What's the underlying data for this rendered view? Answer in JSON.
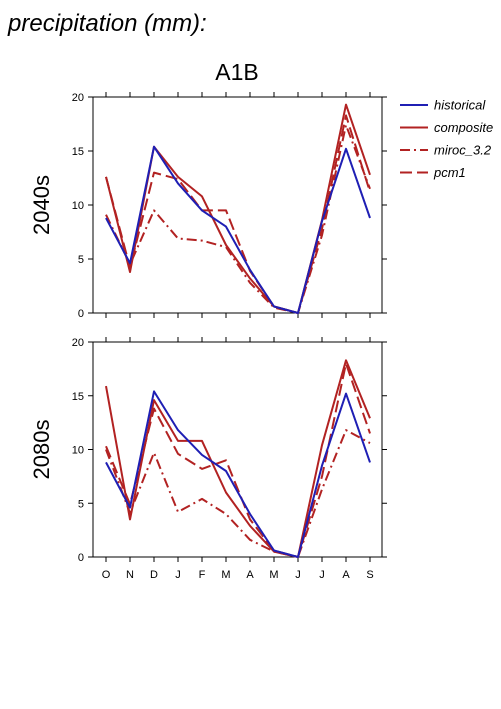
{
  "header": {
    "title": "precipitation (mm):"
  },
  "chart_data": {
    "type": "line",
    "title": "A1B",
    "x_ticks": [
      "O",
      "N",
      "D",
      "J",
      "F",
      "M",
      "A",
      "M",
      "J",
      "J",
      "A",
      "S"
    ],
    "ylim": [
      0,
      20
    ],
    "y_ticks": [
      "0",
      "5",
      "10",
      "15",
      "20"
    ],
    "grid": false,
    "legend_position": "right",
    "legend": [
      {
        "name": "historical",
        "color": "#1f1fb4",
        "style": "solid"
      },
      {
        "name": "composite",
        "color": "#b22222",
        "style": "solid"
      },
      {
        "name": "miroc_3.2",
        "color": "#b22222",
        "style": "dash-dot"
      },
      {
        "name": "pcm1",
        "color": "#b22222",
        "style": "dashed"
      }
    ],
    "panels": [
      {
        "ylabel": "2040s",
        "series": [
          {
            "name": "historical",
            "values": [
              8.8,
              4.6,
              15.4,
              12.0,
              9.5,
              8.0,
              4.0,
              0.6,
              0.0,
              8.5,
              15.2,
              8.8
            ]
          },
          {
            "name": "composite",
            "values": [
              12.6,
              3.8,
              15.4,
              12.6,
              10.8,
              6.3,
              3.2,
              0.6,
              0.0,
              8.6,
              19.3,
              12.8
            ]
          },
          {
            "name": "miroc_3.2",
            "values": [
              9.1,
              4.5,
              9.5,
              6.9,
              6.7,
              6.1,
              2.8,
              0.5,
              0.0,
              7.2,
              17.4,
              11.5
            ]
          },
          {
            "name": "pcm1",
            "values": [
              12.6,
              4.2,
              13.0,
              12.4,
              9.5,
              9.5,
              3.9,
              0.6,
              0.0,
              7.8,
              18.3,
              11.2
            ]
          }
        ]
      },
      {
        "ylabel": "2080s",
        "series": [
          {
            "name": "historical",
            "values": [
              8.8,
              4.6,
              15.4,
              11.8,
              9.5,
              8.0,
              4.0,
              0.6,
              0.0,
              8.5,
              15.2,
              8.8
            ]
          },
          {
            "name": "composite",
            "values": [
              15.9,
              3.5,
              14.6,
              10.8,
              10.8,
              6.0,
              2.9,
              0.5,
              0.0,
              10.4,
              18.3,
              12.9
            ]
          },
          {
            "name": "miroc_3.2",
            "values": [
              10.0,
              4.1,
              9.7,
              4.2,
              5.4,
              4.0,
              1.6,
              0.5,
              0.0,
              6.3,
              11.8,
              10.6
            ]
          },
          {
            "name": "pcm1",
            "values": [
              10.3,
              4.9,
              13.8,
              9.6,
              8.2,
              9.0,
              3.5,
              0.6,
              0.0,
              7.5,
              18.0,
              11.5
            ]
          }
        ]
      }
    ]
  }
}
